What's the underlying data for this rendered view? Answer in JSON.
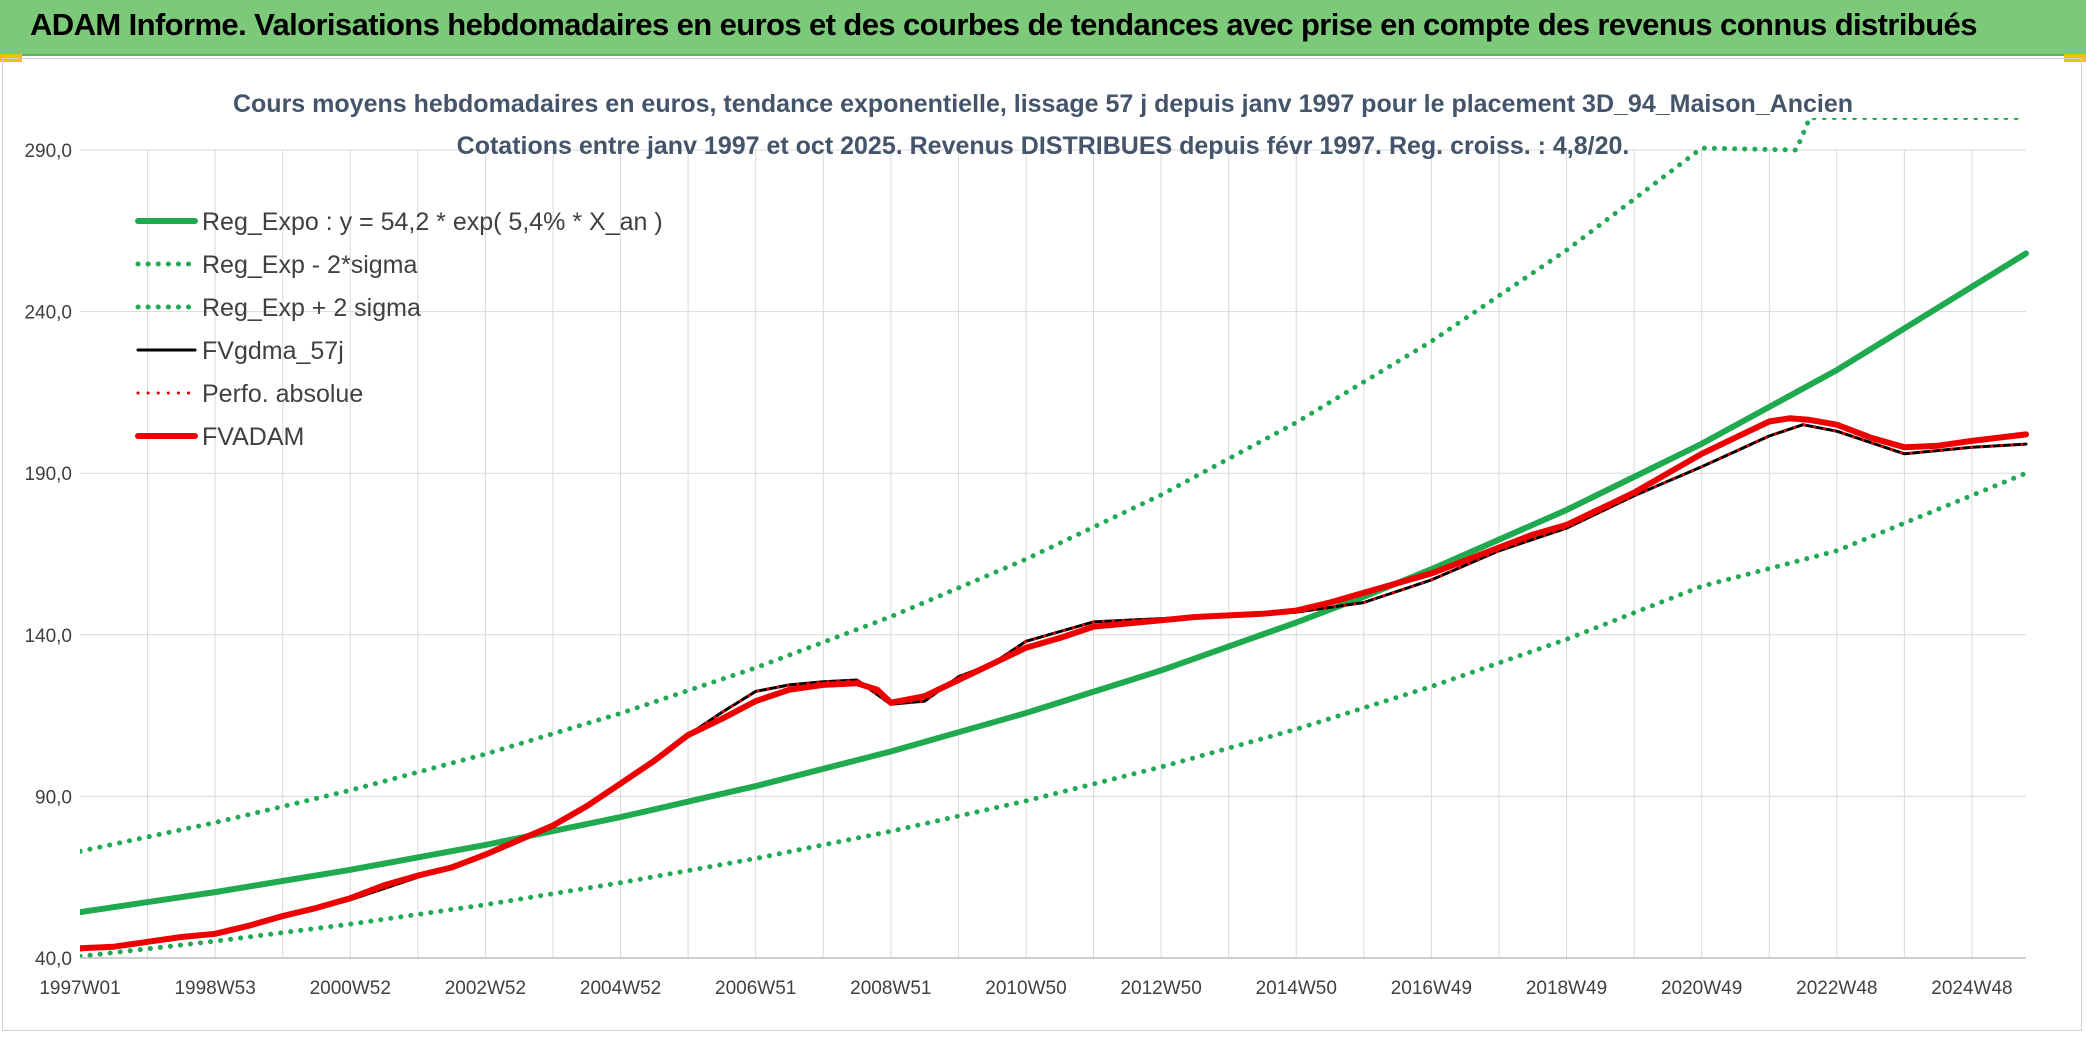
{
  "banner": {
    "title": "ADAM Informe. Valorisations hebdomadaires en euros et des courbes de tendances avec prise en compte des revenus connus distribués"
  },
  "colors": {
    "banner_bg": "#7dc97a",
    "regression": "#1faa4f",
    "sigma": "#21a955",
    "fvgdma": "#000000",
    "perfo": "#e00000",
    "fvadam": "#ee0000",
    "grid": "#d9d9d9"
  },
  "chart_data": {
    "type": "line",
    "title": "Cours moyens hebdomadaires en euros, tendance exponentielle, lissage 57 j depuis janv 1997 pour le placement 3D_94_Maison_Ancien",
    "subtitle": "Cotations entre janv 1997 et oct 2025. Revenus DISTRIBUES depuis févr 1997. Reg. croiss. : 4,8/20.",
    "xlabel": "",
    "ylabel": "",
    "xlim": [
      1997.0,
      2025.8
    ],
    "ylim": [
      40,
      290
    ],
    "y_ticks": [
      40,
      90,
      140,
      190,
      240,
      290
    ],
    "y_tick_labels": [
      "40,0",
      "90,0",
      "140,0",
      "190,0",
      "240,0",
      "290,0"
    ],
    "x_ticks": [
      1997.0,
      1999.0,
      2001.0,
      2003.0,
      2005.0,
      2007.0,
      2009.0,
      2011.0,
      2013.0,
      2015.0,
      2017.0,
      2019.0,
      2021.0,
      2023.0,
      2025.0
    ],
    "x_tick_labels": [
      "1997W01",
      "1998W53",
      "2000W52",
      "2002W52",
      "2004W52",
      "2006W51",
      "2008W51",
      "2010W50",
      "2012W50",
      "2014W50",
      "2016W49",
      "2018W49",
      "2020W49",
      "2022W48",
      "2024W48"
    ],
    "grid": true,
    "legend_position": "top-left",
    "series": [
      {
        "name": "Reg_Expo : y = 54,2 * exp( 5,4% *  X_an )",
        "style": "solid-thick",
        "color": "#1faa4f",
        "x": [
          1997.0,
          1999.0,
          2001.0,
          2003.0,
          2005.0,
          2007.0,
          2009.0,
          2011.0,
          2013.0,
          2015.0,
          2016.0,
          2017.0,
          2019.0,
          2021.0,
          2023.0,
          2025.8
        ],
        "y": [
          54.2,
          60.4,
          67.3,
          75.0,
          83.6,
          93.2,
          103.9,
          115.8,
          129.0,
          143.8,
          151.8,
          160.3,
          178.6,
          199.1,
          221.9,
          258.0
        ]
      },
      {
        "name": "Reg_Exp - 2*sigma",
        "style": "dotted",
        "color": "#21a955",
        "x": [
          1997.0,
          1999.0,
          2001.0,
          2003.0,
          2005.0,
          2007.0,
          2009.0,
          2011.0,
          2013.0,
          2015.0,
          2017.0,
          2019.0,
          2021.0,
          2023.0,
          2025.8
        ],
        "y": [
          40.5,
          45.2,
          50.5,
          56.5,
          63.3,
          70.8,
          79.2,
          88.6,
          99.1,
          110.8,
          124.0,
          138.6,
          155.0,
          166.0,
          190.0
        ]
      },
      {
        "name": "Reg_Exp + 2 sigma",
        "style": "dotted",
        "color": "#21a955",
        "x": [
          1997.0,
          1999.0,
          2001.0,
          2003.0,
          2005.0,
          2007.0,
          2009.0,
          2011.0,
          2013.0,
          2015.0,
          2017.0,
          2019.0,
          2021.0,
          2022.4,
          2022.6,
          2025.8
        ],
        "y": [
          73.0,
          81.9,
          91.9,
          103.1,
          115.7,
          129.8,
          145.6,
          163.4,
          183.3,
          205.7,
          230.8,
          259.0,
          290.6,
          290.0,
          300.0,
          300.0
        ]
      },
      {
        "name": "FVgdma_57j",
        "style": "solid",
        "color": "#000000",
        "x": [
          1997.0,
          1998.0,
          1999.0,
          2000.0,
          2001.0,
          2002.0,
          2003.0,
          2004.0,
          2005.0,
          2006.0,
          2006.5,
          2007.0,
          2007.5,
          2008.0,
          2008.5,
          2009.0,
          2009.5,
          2010.0,
          2010.5,
          2011.0,
          2012.0,
          2013.0,
          2014.0,
          2015.0,
          2016.0,
          2017.0,
          2018.0,
          2019.0,
          2020.0,
          2021.0,
          2022.0,
          2022.5,
          2023.0,
          2024.0,
          2025.0,
          2025.8
        ],
        "y": [
          42.5,
          45.0,
          47.5,
          52.5,
          58.0,
          65.0,
          72.0,
          80.5,
          94.0,
          109.0,
          116.0,
          122.5,
          124.5,
          125.5,
          126.0,
          118.5,
          119.5,
          127.0,
          131.0,
          138.0,
          144.0,
          145.0,
          146.0,
          147.0,
          150.0,
          157.0,
          166.0,
          173.0,
          183.0,
          192.0,
          201.5,
          205.0,
          203.0,
          196.0,
          198.0,
          199.0
        ]
      },
      {
        "name": "Perfo. absolue",
        "style": "dotted",
        "color": "#e00000",
        "x": [
          1997.0,
          1998.0,
          1999.0,
          2000.0,
          2001.0,
          2002.0,
          2003.0,
          2004.0,
          2005.0,
          2006.0,
          2006.5,
          2007.0,
          2007.5,
          2008.0,
          2008.5,
          2009.0,
          2009.5,
          2010.0,
          2010.5,
          2011.0,
          2012.0,
          2013.0,
          2014.0,
          2015.0,
          2016.0,
          2017.0,
          2018.0,
          2019.0,
          2020.0,
          2021.0,
          2022.0,
          2022.5,
          2023.0,
          2024.0,
          2025.0,
          2025.8
        ],
        "y": [
          42.5,
          45.0,
          47.5,
          52.5,
          58.0,
          65.0,
          72.0,
          80.5,
          94.0,
          109.0,
          116.0,
          122.5,
          124.5,
          125.5,
          126.0,
          118.5,
          119.5,
          127.0,
          131.0,
          138.0,
          144.0,
          145.0,
          146.0,
          147.0,
          150.0,
          157.0,
          166.0,
          173.0,
          183.0,
          192.0,
          201.5,
          205.0,
          203.0,
          196.0,
          198.0,
          199.0
        ]
      },
      {
        "name": "FVADAM",
        "style": "solid-thick",
        "color": "#ee0000",
        "x": [
          1997.0,
          1997.5,
          1998.0,
          1998.5,
          1999.0,
          1999.5,
          2000.0,
          2000.5,
          2001.0,
          2001.5,
          2002.0,
          2002.5,
          2003.0,
          2003.5,
          2004.0,
          2004.5,
          2005.0,
          2005.5,
          2006.0,
          2006.5,
          2007.0,
          2007.5,
          2008.0,
          2008.5,
          2008.8,
          2009.0,
          2009.5,
          2010.0,
          2010.5,
          2011.0,
          2011.5,
          2012.0,
          2012.5,
          2013.0,
          2013.5,
          2014.0,
          2014.5,
          2015.0,
          2015.5,
          2016.0,
          2016.5,
          2017.0,
          2017.5,
          2018.0,
          2018.5,
          2019.0,
          2019.5,
          2020.0,
          2020.5,
          2021.0,
          2021.5,
          2022.0,
          2022.3,
          2022.6,
          2023.0,
          2023.5,
          2024.0,
          2024.5,
          2025.0,
          2025.8
        ],
        "y": [
          43.0,
          43.5,
          45.0,
          46.5,
          47.5,
          50.0,
          53.0,
          55.5,
          58.5,
          62.5,
          65.5,
          68.0,
          72.0,
          76.5,
          81.0,
          87.0,
          94.0,
          101.0,
          109.0,
          114.0,
          119.5,
          123.0,
          124.5,
          125.0,
          123.0,
          119.0,
          121.0,
          126.0,
          131.0,
          136.0,
          139.0,
          142.5,
          143.5,
          144.5,
          145.5,
          146.0,
          146.5,
          147.5,
          150.0,
          153.0,
          156.0,
          159.0,
          163.0,
          167.0,
          171.0,
          174.0,
          179.0,
          184.0,
          190.0,
          196.0,
          201.0,
          206.0,
          207.0,
          206.5,
          205.0,
          201.0,
          198.0,
          198.5,
          200.0,
          202.0
        ]
      }
    ]
  }
}
